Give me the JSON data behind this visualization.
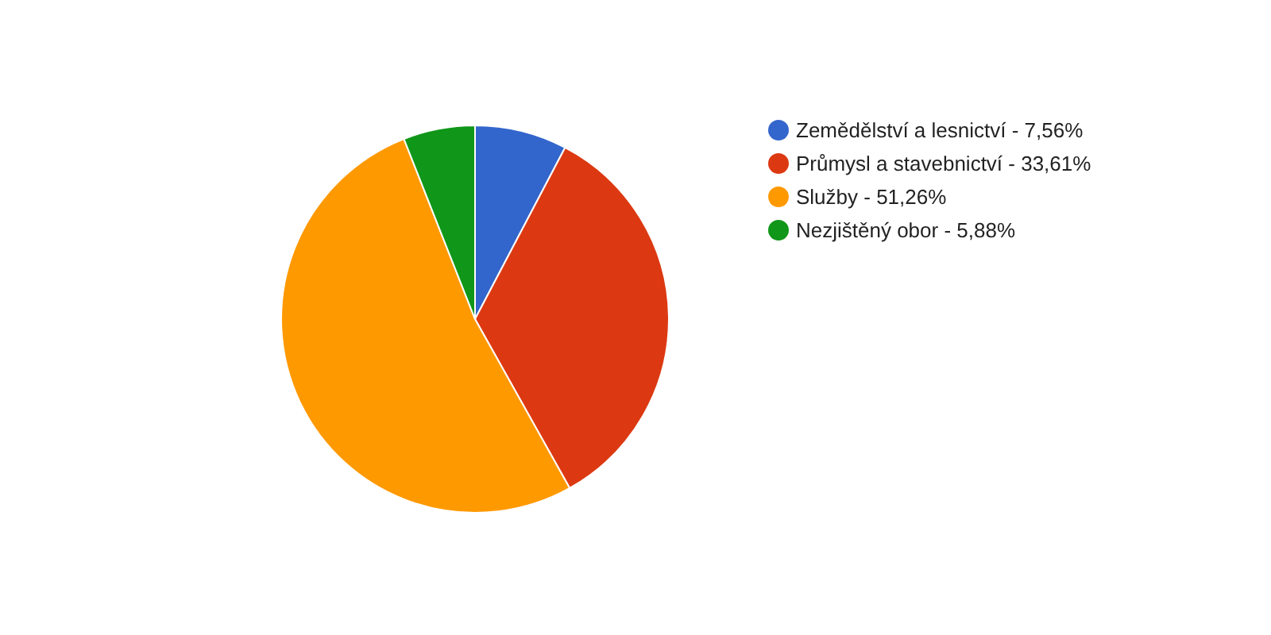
{
  "chart_data": {
    "type": "pie",
    "categories": [
      "Zemědělství a lesnictví - 7,56%",
      "Průmysl a stavebnictví - 33,61%",
      "Služby - 51,26%",
      "Nezjištěný obor - 5,88%"
    ],
    "values": [
      7.56,
      33.61,
      51.26,
      5.88
    ],
    "colors": [
      "#3366cc",
      "#dc3912",
      "#ff9900",
      "#109618"
    ],
    "legend": "right"
  }
}
